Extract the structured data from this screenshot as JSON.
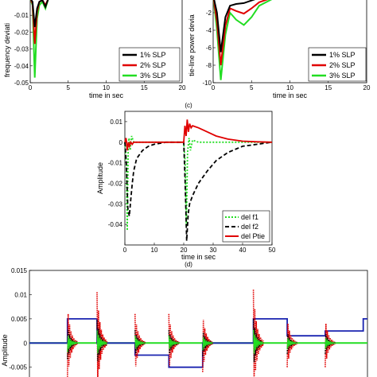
{
  "chart_data": [
    {
      "id": "a",
      "type": "line",
      "xlabel": "time in sec",
      "ylabel": "frequency deviation",
      "ylabel_visible": "frequency deviati",
      "xlim": [
        0,
        20
      ],
      "ylim": [
        -0.05,
        0.0
      ],
      "xticks": [
        "0",
        "5",
        "10",
        "15",
        "20"
      ],
      "yticks": [
        "-0.05",
        "-0.04",
        "-0.03",
        "-0.02",
        "-0.01"
      ],
      "ytick_top": "-0.01",
      "legend": "bottom-right",
      "series": [
        {
          "name": "1% SLP",
          "color": "#000000",
          "x": [
            0,
            0.3,
            0.6,
            0.9,
            1.2,
            1.6,
            2.0,
            2.4,
            3.0,
            20
          ],
          "y": [
            0,
            -0.002,
            -0.017,
            -0.006,
            -0.002,
            -0.001,
            -0.005,
            0,
            0,
            0
          ]
        },
        {
          "name": "2% SLP",
          "color": "#e00000",
          "x": [
            0,
            0.3,
            0.6,
            0.9,
            1.2,
            1.6,
            2.0,
            2.4,
            3.0,
            20
          ],
          "y": [
            0,
            -0.003,
            -0.027,
            -0.008,
            -0.002,
            -0.001,
            -0.004,
            0,
            0,
            0
          ]
        },
        {
          "name": "3% SLP",
          "color": "#22dd22",
          "x": [
            0,
            0.3,
            0.6,
            0.9,
            1.2,
            1.6,
            2.0,
            2.4,
            3.0,
            20
          ],
          "y": [
            0,
            -0.004,
            -0.047,
            -0.012,
            -0.004,
            -0.002,
            -0.006,
            0,
            0,
            0
          ]
        }
      ]
    },
    {
      "id": "b",
      "type": "line",
      "xlabel": "time in sec",
      "ylabel": "tie-line power deviation",
      "ylabel_visible": "tie-line power devia",
      "xlim": [
        0,
        20
      ],
      "ylim": [
        -10,
        0
      ],
      "xticks": [
        "0",
        "5",
        "10",
        "15",
        "20"
      ],
      "yticks": [
        "-2",
        "-4",
        "-6",
        "-8",
        "-10"
      ],
      "legend": "bottom-right",
      "series": [
        {
          "name": "1% SLP",
          "color": "#000000",
          "x": [
            0,
            0.5,
            1.0,
            1.6,
            2.2,
            3,
            4,
            5,
            6,
            8,
            10,
            20
          ],
          "y": [
            0,
            -2,
            -6.5,
            -2.5,
            -1.2,
            -1.0,
            -0.9,
            -0.6,
            -0.3,
            -0.1,
            0,
            0
          ]
        },
        {
          "name": "2% SLP",
          "color": "#e00000",
          "x": [
            0,
            0.5,
            1.0,
            1.6,
            2.2,
            3,
            4,
            5,
            6,
            8,
            10,
            20
          ],
          "y": [
            0,
            -3,
            -8.0,
            -3.5,
            -1.5,
            -1.8,
            -2.1,
            -1.5,
            -0.8,
            -0.2,
            0,
            0
          ]
        },
        {
          "name": "3% SLP",
          "color": "#22dd22",
          "x": [
            0,
            0.5,
            1.0,
            1.6,
            2.2,
            3,
            4,
            5,
            6,
            8,
            10,
            20
          ],
          "y": [
            0,
            -4,
            -9.7,
            -4.5,
            -2.0,
            -2.8,
            -3.4,
            -2.5,
            -1.2,
            -0.3,
            0,
            0
          ]
        }
      ]
    },
    {
      "id": "c",
      "type": "line",
      "panel_label": "(c)",
      "xlabel": "time in sec",
      "ylabel": "Amplitude",
      "xlim": [
        0,
        50
      ],
      "ylim": [
        -0.05,
        0.015
      ],
      "xticks": [
        "0",
        "10",
        "20",
        "30",
        "40",
        "50"
      ],
      "yticks": [
        "0.01",
        "0",
        "-0.01",
        "-0.02",
        "-0.03",
        "-0.04"
      ],
      "legend": "bottom-right",
      "series": [
        {
          "name": "del f1",
          "color": "#22dd22",
          "dash": "2,2",
          "x": [
            0,
            0.5,
            0.8,
            1.1,
            1.4,
            1.8,
            2.3,
            3,
            5,
            20,
            20.5,
            20.9,
            21.3,
            21.8,
            22.3,
            23,
            25,
            30,
            50
          ],
          "y": [
            0,
            -0.01,
            -0.043,
            -0.005,
            0.002,
            -0.004,
            0.003,
            0,
            0,
            0,
            -0.01,
            -0.041,
            -0.005,
            0.002,
            -0.004,
            0.001,
            0,
            0,
            0
          ]
        },
        {
          "name": "del f2",
          "color": "#000000",
          "dash": "5,3",
          "x": [
            0,
            0.5,
            1.0,
            1.5,
            2.0,
            2.5,
            3,
            4,
            6,
            8,
            10,
            14,
            18,
            20,
            20.5,
            21,
            21.5,
            22,
            23,
            25,
            28,
            31,
            35,
            40,
            45,
            50
          ],
          "y": [
            0,
            -0.01,
            -0.032,
            -0.036,
            -0.028,
            -0.02,
            -0.014,
            -0.008,
            -0.004,
            -0.002,
            -0.001,
            0,
            0,
            0,
            -0.02,
            -0.048,
            -0.035,
            -0.03,
            -0.026,
            -0.02,
            -0.014,
            -0.009,
            -0.005,
            -0.002,
            -0.001,
            0
          ]
        },
        {
          "name": "del Ptie",
          "color": "#e00000",
          "x": [
            0,
            0.4,
            0.8,
            1.2,
            1.6,
            2.0,
            2.5,
            3,
            4,
            6,
            20,
            20.4,
            20.8,
            21.2,
            21.6,
            22.0,
            22.5,
            23,
            25,
            28,
            31,
            35,
            40,
            45,
            50
          ],
          "y": [
            0,
            0.002,
            -0.004,
            0.0,
            -0.002,
            0.0,
            -0.001,
            0,
            0,
            0,
            0,
            0.008,
            0.003,
            0.011,
            0.005,
            0.009,
            0.007,
            0.008,
            0.007,
            0.005,
            0.003,
            0.0015,
            0.0005,
            0.0002,
            0
          ]
        }
      ]
    },
    {
      "id": "d",
      "type": "line",
      "panel_label": "(d)",
      "ylabel": "Amplitude",
      "ylim": [
        -0.008,
        0.015
      ],
      "yticks": [
        "0.015",
        "0.01",
        "0.005",
        "0",
        "-0.005"
      ],
      "step_series": {
        "color": "#1a24b0",
        "x": [
          0.4,
          0.9,
          0.9,
          1.6,
          1.6,
          2.5,
          2.5,
          3.3,
          3.3,
          4.1,
          4.1,
          5.3,
          5.3,
          6.1,
          6.1,
          7.0,
          7.0,
          7.9,
          7.9
        ],
        "y": [
          0,
          0,
          0.005,
          0.005,
          0,
          0,
          -0.0025,
          -0.0025,
          -0.005,
          -0.005,
          0,
          0,
          0.005,
          0.005,
          0.0015,
          0.0015,
          0.0025,
          0.0025,
          0.005
        ],
        "x_domain": [
          0,
          8
        ]
      },
      "spike_times": [
        0.9,
        1.6,
        2.5,
        3.3,
        4.1,
        5.3,
        6.1,
        7.0
      ],
      "spike_amplitudes": [
        -0.0075,
        0.0105,
        0.006,
        0.006,
        -0.006,
        0.011,
        -0.005,
        -0.005
      ]
    }
  ]
}
